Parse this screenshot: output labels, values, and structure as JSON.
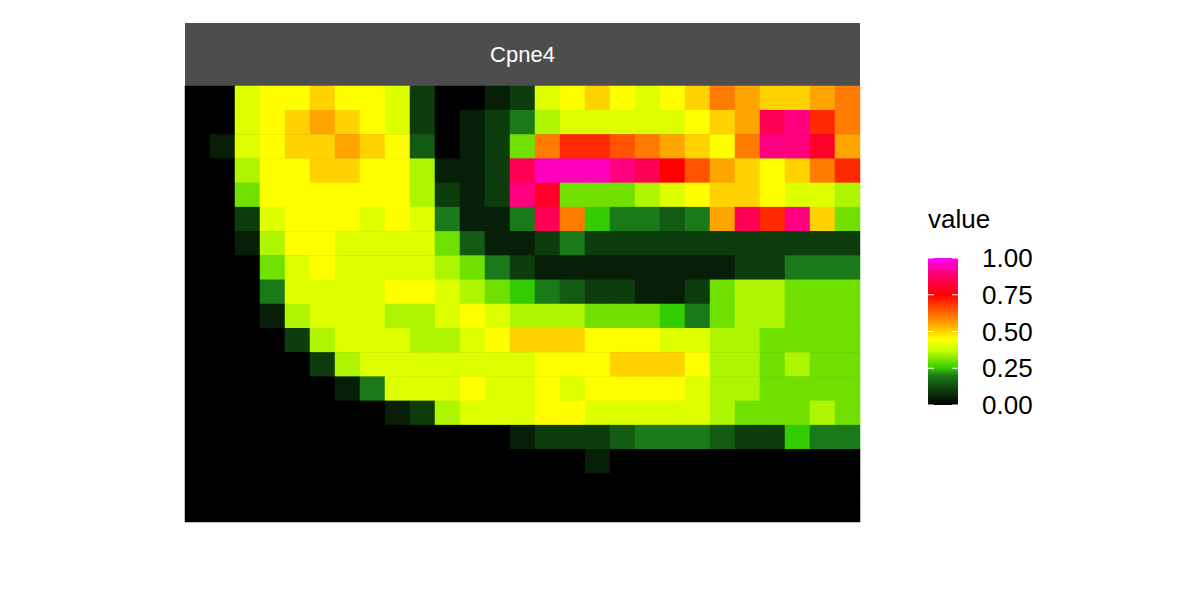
{
  "chart_data": {
    "type": "heatmap",
    "title": "Cpne4",
    "tick_labels": false,
    "color_label": "value",
    "color_range": [
      0,
      1
    ],
    "color_ticks": [
      {
        "value": 0,
        "label": "0.00"
      },
      0.25,
      {
        "value": 0.5,
        "label": "0.50"
      },
      0.75,
      {
        "value": 1,
        "label": "1.00"
      }
    ],
    "cells": [
      [
        0,
        0,
        0.4,
        0.45,
        0.45,
        0.5,
        0.45,
        0.45,
        0.4,
        0.1,
        0,
        0,
        0.05,
        0.1,
        0.4,
        0.45,
        0.5,
        0.45,
        0.4,
        0.45,
        0.5,
        0.6,
        0.55,
        0.5,
        0.5,
        0.55,
        0.6
      ],
      [
        0,
        0,
        0.4,
        0.45,
        0.5,
        0.55,
        0.5,
        0.45,
        0.4,
        0.1,
        0,
        0.05,
        0.1,
        0.2,
        0.35,
        0.4,
        0.4,
        0.4,
        0.4,
        0.4,
        0.45,
        0.5,
        0.55,
        0.85,
        0.9,
        0.7,
        0.6
      ],
      [
        0,
        0.05,
        0.4,
        0.45,
        0.5,
        0.5,
        0.55,
        0.5,
        0.45,
        0.15,
        0,
        0.05,
        0.1,
        0.3,
        0.6,
        0.7,
        0.7,
        0.65,
        0.6,
        0.55,
        0.5,
        0.45,
        0.6,
        0.9,
        0.9,
        0.8,
        0.55
      ],
      [
        0,
        0,
        0.35,
        0.45,
        0.45,
        0.5,
        0.5,
        0.45,
        0.45,
        0.35,
        0.05,
        0.05,
        0.1,
        0.85,
        0.95,
        0.95,
        0.95,
        0.9,
        0.85,
        0.75,
        0.65,
        0.55,
        0.5,
        0.45,
        0.5,
        0.6,
        0.7
      ],
      [
        0,
        0,
        0.3,
        0.45,
        0.45,
        0.45,
        0.45,
        0.45,
        0.45,
        0.35,
        0.1,
        0.05,
        0.1,
        0.9,
        0.8,
        0.3,
        0.3,
        0.3,
        0.35,
        0.4,
        0.45,
        0.5,
        0.5,
        0.45,
        0.4,
        0.4,
        0.35
      ],
      [
        0,
        0,
        0.1,
        0.4,
        0.45,
        0.45,
        0.45,
        0.4,
        0.45,
        0.4,
        0.2,
        0.05,
        0.05,
        0.2,
        0.85,
        0.6,
        0.25,
        0.2,
        0.2,
        0.15,
        0.2,
        0.55,
        0.85,
        0.7,
        0.9,
        0.5,
        0.3
      ],
      [
        0,
        0,
        0.05,
        0.35,
        0.45,
        0.45,
        0.4,
        0.4,
        0.4,
        0.4,
        0.3,
        0.15,
        0.05,
        0.05,
        0.1,
        0.2,
        0.1,
        0.1,
        0.1,
        0.1,
        0.1,
        0.1,
        0.1,
        0.1,
        0.1,
        0.1,
        0.1
      ],
      [
        0,
        0,
        0,
        0.3,
        0.4,
        0.45,
        0.4,
        0.4,
        0.4,
        0.4,
        0.35,
        0.3,
        0.2,
        0.1,
        0.05,
        0.05,
        0.05,
        0.05,
        0.05,
        0.05,
        0.05,
        0.05,
        0.1,
        0.1,
        0.2,
        0.2,
        0.2
      ],
      [
        0,
        0,
        0,
        0.2,
        0.4,
        0.4,
        0.4,
        0.4,
        0.45,
        0.45,
        0.4,
        0.35,
        0.3,
        0.25,
        0.2,
        0.15,
        0.1,
        0.1,
        0.05,
        0.05,
        0.1,
        0.3,
        0.35,
        0.35,
        0.3,
        0.3,
        0.3
      ],
      [
        0,
        0,
        0,
        0.05,
        0.35,
        0.4,
        0.4,
        0.4,
        0.35,
        0.35,
        0.4,
        0.45,
        0.4,
        0.35,
        0.35,
        0.35,
        0.3,
        0.3,
        0.3,
        0.25,
        0.2,
        0.3,
        0.35,
        0.35,
        0.3,
        0.3,
        0.3
      ],
      [
        0,
        0,
        0,
        0,
        0.1,
        0.35,
        0.4,
        0.4,
        0.4,
        0.35,
        0.35,
        0.4,
        0.45,
        0.5,
        0.5,
        0.5,
        0.45,
        0.45,
        0.45,
        0.4,
        0.4,
        0.35,
        0.35,
        0.3,
        0.3,
        0.3,
        0.3
      ],
      [
        0,
        0,
        0,
        0,
        0,
        0.1,
        0.35,
        0.4,
        0.4,
        0.4,
        0.4,
        0.4,
        0.4,
        0.4,
        0.45,
        0.45,
        0.45,
        0.5,
        0.5,
        0.5,
        0.45,
        0.35,
        0.35,
        0.3,
        0.35,
        0.3,
        0.3
      ],
      [
        0,
        0,
        0,
        0,
        0,
        0,
        0.05,
        0.2,
        0.4,
        0.4,
        0.4,
        0.45,
        0.4,
        0.4,
        0.45,
        0.4,
        0.45,
        0.45,
        0.45,
        0.45,
        0.4,
        0.35,
        0.35,
        0.3,
        0.3,
        0.3,
        0.3
      ],
      [
        0,
        0,
        0,
        0,
        0,
        0,
        0,
        0,
        0.05,
        0.1,
        0.35,
        0.4,
        0.4,
        0.4,
        0.45,
        0.45,
        0.4,
        0.4,
        0.4,
        0.4,
        0.4,
        0.35,
        0.3,
        0.3,
        0.3,
        0.35,
        0.3
      ],
      [
        0,
        0,
        0,
        0,
        0,
        0,
        0,
        0,
        0,
        0,
        0,
        0,
        0,
        0.05,
        0.1,
        0.1,
        0.1,
        0.15,
        0.2,
        0.2,
        0.2,
        0.15,
        0.1,
        0.1,
        0.25,
        0.2,
        0.2
      ],
      [
        0,
        0,
        0,
        0,
        0,
        0,
        0,
        0,
        0,
        0,
        0,
        0,
        0,
        0,
        0,
        0,
        0.05,
        0,
        0,
        0,
        0,
        0,
        0,
        0,
        0,
        0,
        0
      ],
      [
        0,
        0,
        0,
        0,
        0,
        0,
        0,
        0,
        0,
        0,
        0,
        0,
        0,
        0,
        0,
        0,
        0,
        0,
        0,
        0,
        0,
        0,
        0,
        0,
        0,
        0,
        0
      ],
      [
        0,
        0,
        0,
        0,
        0,
        0,
        0,
        0,
        0,
        0,
        0,
        0,
        0,
        0,
        0,
        0,
        0,
        0,
        0,
        0,
        0,
        0,
        0,
        0,
        0,
        0,
        0
      ]
    ]
  }
}
